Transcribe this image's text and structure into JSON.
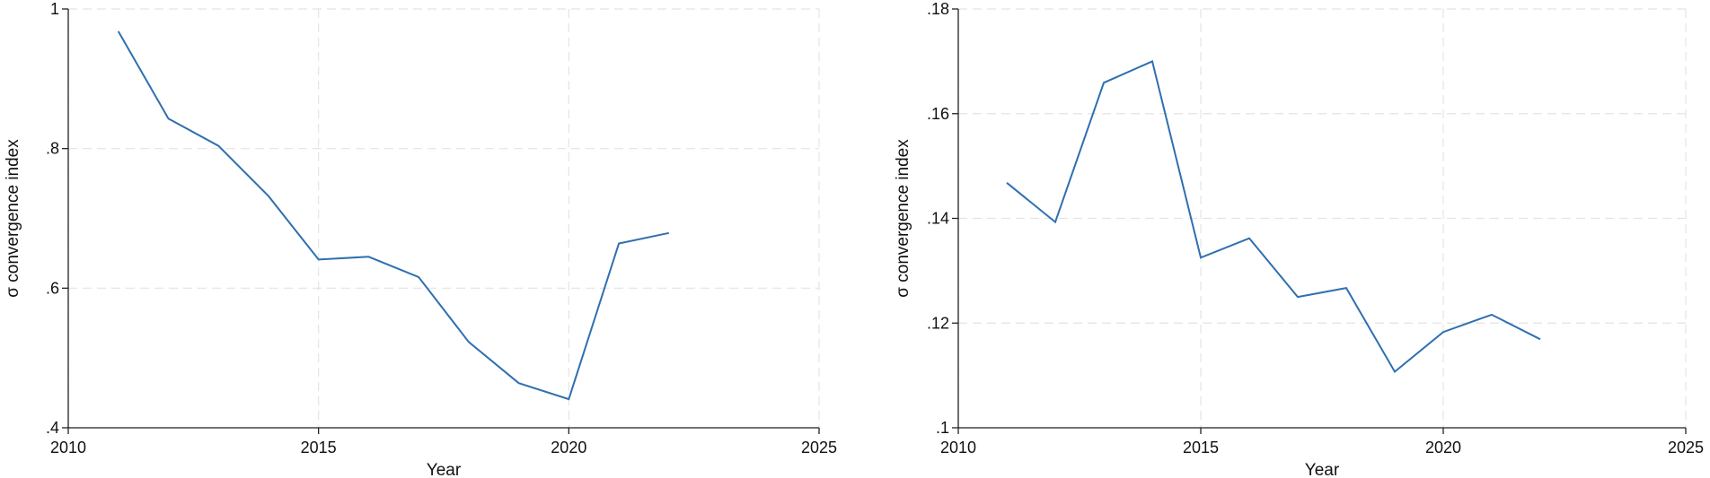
{
  "chart_data": [
    {
      "type": "line",
      "xlabel": "Year",
      "ylabel": "σ convergence index",
      "xlim": [
        2010,
        2025
      ],
      "ylim": [
        0.4,
        1.0
      ],
      "x_ticks": [
        2010,
        2015,
        2020,
        2025
      ],
      "x_tick_labels": [
        "2010",
        "2015",
        "2020",
        "2025"
      ],
      "y_ticks": [
        0.4,
        0.6,
        0.8,
        1.0
      ],
      "y_tick_labels": [
        ".4",
        ".6",
        ".8",
        "1"
      ],
      "grid": true,
      "series": [
        {
          "x": [
            2011,
            2012,
            2013,
            2014,
            2015,
            2016,
            2017,
            2018,
            2019,
            2020,
            2021,
            2022
          ],
          "y": [
            0.968,
            0.843,
            0.804,
            0.732,
            0.641,
            0.645,
            0.616,
            0.523,
            0.464,
            0.441,
            0.664,
            0.679
          ],
          "color": "#2f6fb0"
        }
      ]
    },
    {
      "type": "line",
      "xlabel": "Year",
      "ylabel": "σ convergence index",
      "xlim": [
        2010,
        2025
      ],
      "ylim": [
        0.1,
        0.18
      ],
      "x_ticks": [
        2010,
        2015,
        2020,
        2025
      ],
      "x_tick_labels": [
        "2010",
        "2015",
        "2020",
        "2025"
      ],
      "y_ticks": [
        0.1,
        0.12,
        0.14,
        0.16,
        0.18
      ],
      "y_tick_labels": [
        ".1",
        ".12",
        ".14",
        ".16",
        ".18"
      ],
      "grid": true,
      "series": [
        {
          "x": [
            2011,
            2012,
            2013,
            2014,
            2015,
            2016,
            2017,
            2018,
            2019,
            2020,
            2021,
            2022
          ],
          "y": [
            0.1468,
            0.1393,
            0.1659,
            0.17,
            0.1325,
            0.1362,
            0.125,
            0.1267,
            0.1107,
            0.1183,
            0.1216,
            0.1169
          ],
          "color": "#2f6fb0"
        }
      ]
    }
  ]
}
